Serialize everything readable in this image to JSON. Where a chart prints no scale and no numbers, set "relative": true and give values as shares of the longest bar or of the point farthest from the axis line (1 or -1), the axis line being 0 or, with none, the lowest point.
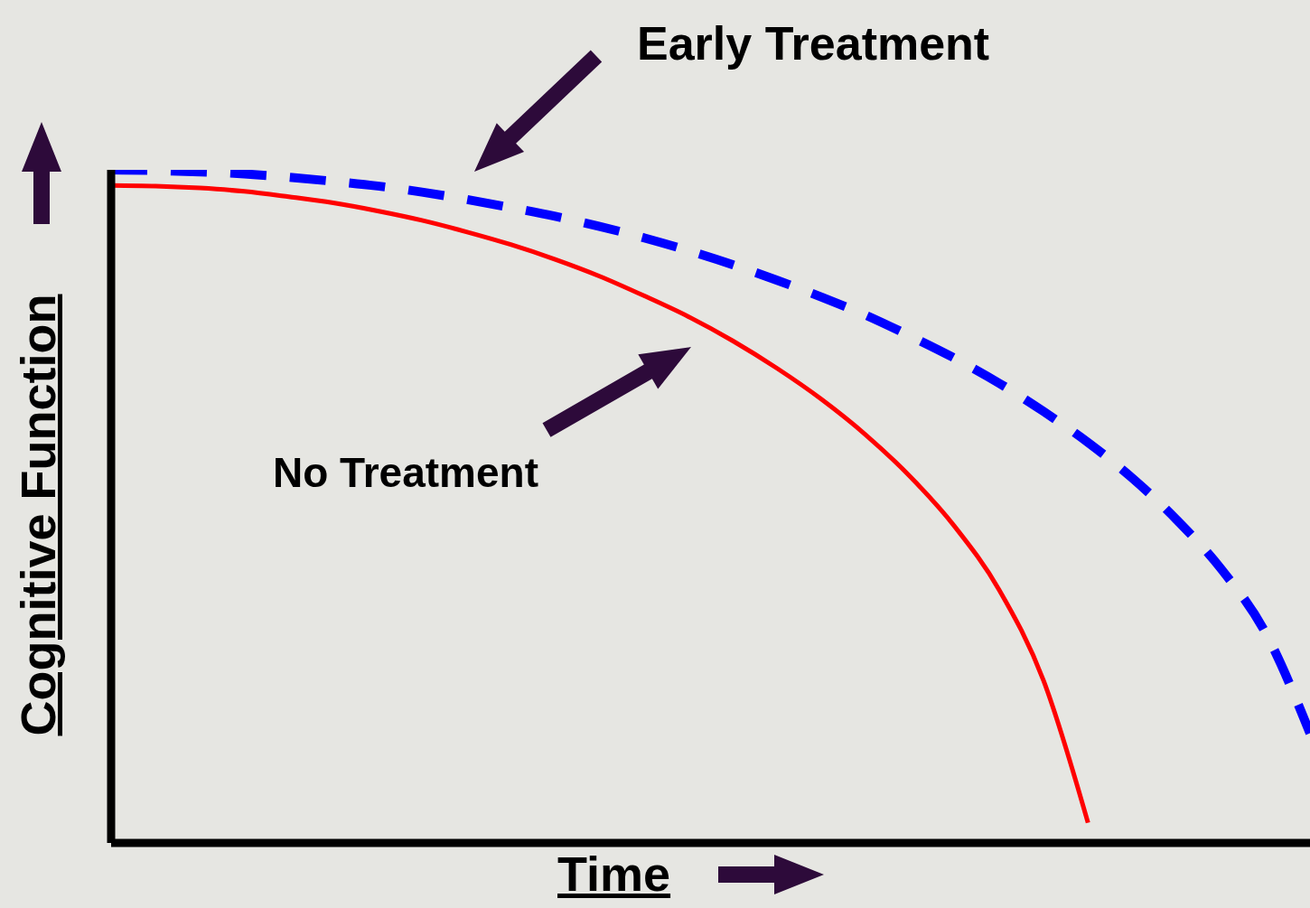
{
  "chart_data": {
    "type": "line",
    "relative": true,
    "xlabel": "Time",
    "ylabel": "Cognitive Function",
    "categories": [
      null,
      null,
      null,
      null,
      null,
      null,
      null,
      null,
      null,
      null,
      null,
      null,
      null,
      null,
      null,
      null,
      null,
      null,
      null,
      null,
      null,
      null,
      null,
      null,
      null,
      null,
      null,
      null
    ],
    "series": [
      {
        "color": "#0000ff",
        "line_style": "dashed",
        "values": [
          1,
          0.999,
          0.997,
          0.994,
          0.989,
          0.983,
          0.976,
          0.967,
          0.956,
          0.944,
          0.931,
          0.916,
          0.899,
          0.88,
          0.859,
          0.836,
          0.811,
          0.784,
          0.753,
          0.72,
          0.683,
          0.641,
          0.595,
          0.542,
          0.48,
          0.407,
          0.312,
          0.163
        ]
      },
      {
        "color": "#ff0000",
        "line_style": "solid",
        "values": [
          0.977,
          0.976,
          0.973,
          0.968,
          0.96,
          0.951,
          0.939,
          0.925,
          0.908,
          0.889,
          0.867,
          0.842,
          0.813,
          0.782,
          0.746,
          0.705,
          0.659,
          0.606,
          0.544,
          0.47,
          0.376,
          0.241,
          0.03,
          null,
          null,
          null,
          null,
          null
        ]
      }
    ],
    "annotations": [
      "Early Treatment",
      "No Treatment"
    ],
    "legend": false,
    "grid": false,
    "marker": "none"
  }
}
